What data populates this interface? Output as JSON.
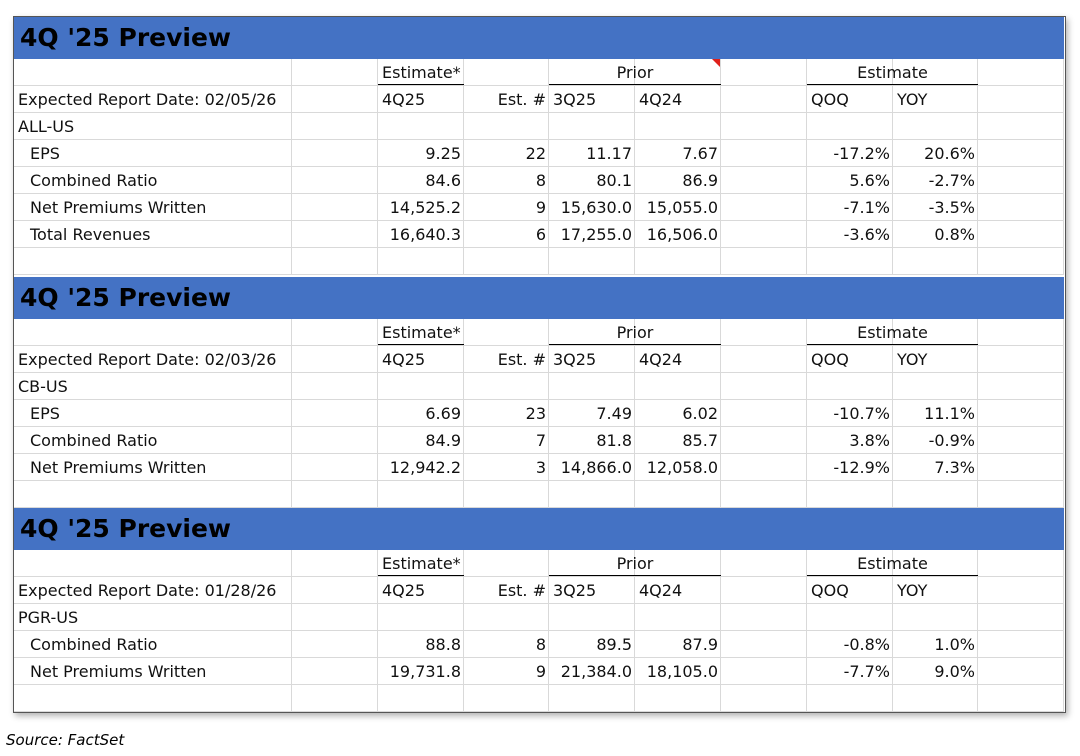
{
  "sections": [
    {
      "title": "4Q '25 Preview",
      "estimate_header": "Estimate*",
      "prior_header": "Prior",
      "growth_header": "Estimate",
      "date_label": "Expected Report Date: 02/05/26",
      "col_labels": [
        "4Q25",
        "Est. #",
        "3Q25",
        "4Q24",
        "QOQ",
        "YOY"
      ],
      "ticker": "ALL-US",
      "rows": [
        [
          "EPS",
          "9.25",
          "22",
          "11.17",
          "7.67",
          "-17.2%",
          "20.6%"
        ],
        [
          "Combined Ratio",
          "84.6",
          "8",
          "80.1",
          "86.9",
          "5.6%",
          "-2.7%"
        ],
        [
          "Net Premiums Written",
          "14,525.2",
          "9",
          "15,630.0",
          "15,055.0",
          "-7.1%",
          "-3.5%"
        ],
        [
          "Total Revenues",
          "16,640.3",
          "6",
          "17,255.0",
          "16,506.0",
          "-3.6%",
          "0.8%"
        ]
      ]
    },
    {
      "title": "4Q '25 Preview",
      "estimate_header": "Estimate*",
      "prior_header": "Prior",
      "growth_header": "Estimate",
      "date_label": "Expected Report Date: 02/03/26",
      "col_labels": [
        "4Q25",
        "Est. #",
        "3Q25",
        "4Q24",
        "QOQ",
        "YOY"
      ],
      "ticker": "CB-US",
      "rows": [
        [
          "EPS",
          "6.69",
          "23",
          "7.49",
          "6.02",
          "-10.7%",
          "11.1%"
        ],
        [
          "Combined Ratio",
          "84.9",
          "7",
          "81.8",
          "85.7",
          "3.8%",
          "-0.9%"
        ],
        [
          "Net Premiums Written",
          "12,942.2",
          "3",
          "14,866.0",
          "12,058.0",
          "-12.9%",
          "7.3%"
        ]
      ]
    },
    {
      "title": "4Q '25 Preview",
      "estimate_header": "Estimate*",
      "prior_header": "Prior",
      "growth_header": "Estimate",
      "date_label": "Expected Report Date: 01/28/26",
      "col_labels": [
        "4Q25",
        "Est. #",
        "3Q25",
        "4Q24",
        "QOQ",
        "YOY"
      ],
      "ticker": "PGR-US",
      "rows": [
        [
          "Combined Ratio",
          "88.8",
          "8",
          "89.5",
          "87.9",
          "-0.8%",
          "1.0%"
        ],
        [
          "Net Premiums Written",
          "19,731.8",
          "9",
          "21,384.0",
          "18,105.0",
          "-7.7%",
          "9.0%"
        ]
      ]
    }
  ],
  "source": "Source: FactSet"
}
